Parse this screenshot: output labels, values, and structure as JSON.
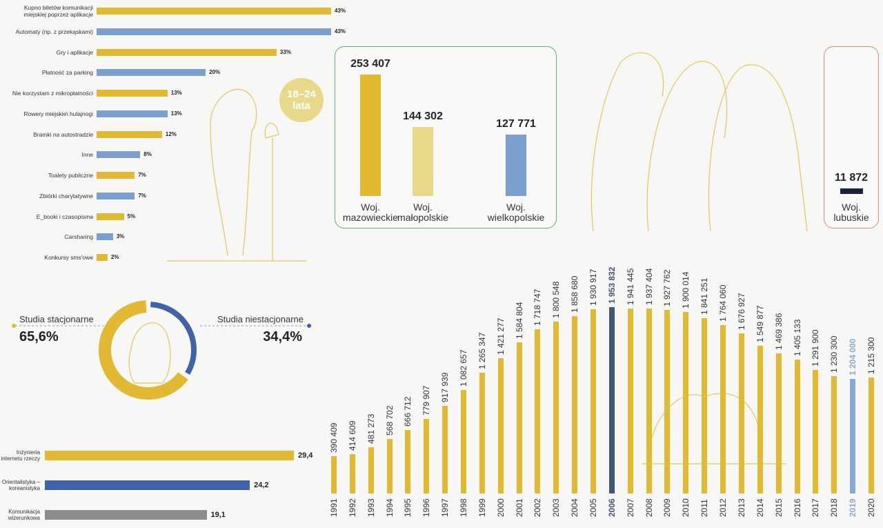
{
  "chart_data": [
    {
      "type": "hbar",
      "categories": [
        "Kupno biletów komunikacji miejskiej poprzez aplikacje",
        "Automaty (np. z przekąskami)",
        "Gry i aplikacje",
        "Płatność za parking",
        "Nie korzystam z mikropłatności",
        "Rowery miejskie\\ hulajnogi",
        "Bramki na autostradzie",
        "Inne",
        "Toalety publiczne",
        "Zbiórki charytatywne",
        "E_booki i czasopisma",
        "Carsharing",
        "Konkursy sms'owe"
      ],
      "values": [
        43,
        43,
        33,
        20,
        13,
        13,
        12,
        8,
        7,
        7,
        5,
        3,
        2
      ],
      "value_labels": [
        "43%",
        "43%",
        "33%",
        "20%",
        "13%",
        "13%",
        "12%",
        "8%",
        "7%",
        "7%",
        "5%",
        "3%",
        "2%"
      ],
      "colors": [
        "#e2b932",
        "#7b9fcf",
        "#e2b932",
        "#7b9fcf",
        "#e2b932",
        "#7b9fcf",
        "#e2b932",
        "#7b9fcf",
        "#e2b932",
        "#7b9fcf",
        "#e2b932",
        "#7b9fcf",
        "#e2b932"
      ],
      "annotation": "18–24 lata"
    },
    {
      "type": "bar",
      "categories": [
        "Woj. mazowieckie",
        "Woj. małopolskie",
        "Woj. wielkopolskie",
        "Woj. lubuskie"
      ],
      "values": [
        253407,
        144302,
        127771,
        11872
      ],
      "value_labels": [
        "253 407",
        "144 302",
        "127 771",
        "11 872"
      ],
      "colors": [
        "#e2b932",
        "#e8d88a",
        "#7b9fcf",
        "#1b2340"
      ]
    },
    {
      "type": "pie",
      "categories": [
        "Studia stacjonarne",
        "Studia niestacjonarne"
      ],
      "values": [
        65.6,
        34.4
      ],
      "value_labels": [
        "65,6%",
        "34,4%"
      ],
      "colors": [
        "#e2b932",
        "#3f63a6"
      ]
    },
    {
      "type": "hbar",
      "categories": [
        "Inżynieria internetu rzeczy",
        "Orientalistyka – koreanistyka",
        "Komunikacja wizerunkowa"
      ],
      "values": [
        29.4,
        24.2,
        19.1
      ],
      "value_labels": [
        "29,4",
        "24,2",
        "19,1"
      ],
      "colors": [
        "#e2b932",
        "#3f63a6",
        "#8c8c8c"
      ]
    },
    {
      "type": "bar",
      "categories": [
        "1991",
        "1992",
        "1993",
        "1994",
        "1995",
        "1996",
        "1997",
        "1998",
        "1999",
        "2000",
        "2001",
        "2002",
        "2003",
        "2004",
        "2005",
        "2006",
        "2007",
        "2008",
        "2009",
        "2010",
        "2011",
        "2012",
        "2013",
        "2014",
        "2015",
        "2016",
        "2017",
        "2018",
        "2019",
        "2020"
      ],
      "values": [
        390409,
        414609,
        481273,
        568702,
        666712,
        779907,
        917939,
        1082657,
        1265347,
        1421277,
        1584804,
        1718747,
        1800548,
        1858680,
        1930917,
        1953832,
        1941445,
        1937404,
        1927762,
        1900014,
        1841251,
        1764060,
        1676927,
        1549877,
        1469386,
        1405133,
        1291900,
        1230300,
        1204000,
        1215300
      ],
      "value_labels": [
        "390 409",
        "414 609",
        "481 273",
        "568 702",
        "666 712",
        "779 907",
        "917 939",
        "1 082 657",
        "1 265 347",
        "1 421 277",
        "1 584 804",
        "1 718 747",
        "1 800 548",
        "1 858 680",
        "1 930 917",
        "1 953 832",
        "1 941 445",
        "1 937 404",
        "1 927 762",
        "1 900 014",
        "1 841 251",
        "1 764 060",
        "1 676 927",
        "1 549 877",
        "1 469 386",
        "1 405 133",
        "1 291 900",
        "1 230 300",
        "1 204 000",
        "1 215 300"
      ],
      "color": "#e2b932",
      "colors": [
        "#e2b932",
        "#e2b932",
        "#e2b932",
        "#e2b932",
        "#e2b932",
        "#e2b932",
        "#e2b932",
        "#e2b932",
        "#e2b932",
        "#e2b932",
        "#e2b932",
        "#e2b932",
        "#e2b932",
        "#e2b932",
        "#e2b932",
        "#3e5878",
        "#e2b932",
        "#e2b932",
        "#e2b932",
        "#e2b932",
        "#e2b932",
        "#e2b932",
        "#e2b932",
        "#e2b932",
        "#e2b932",
        "#e2b932",
        "#e2b932",
        "#e2b932",
        "#8aaad6",
        "#e2b932"
      ]
    }
  ]
}
